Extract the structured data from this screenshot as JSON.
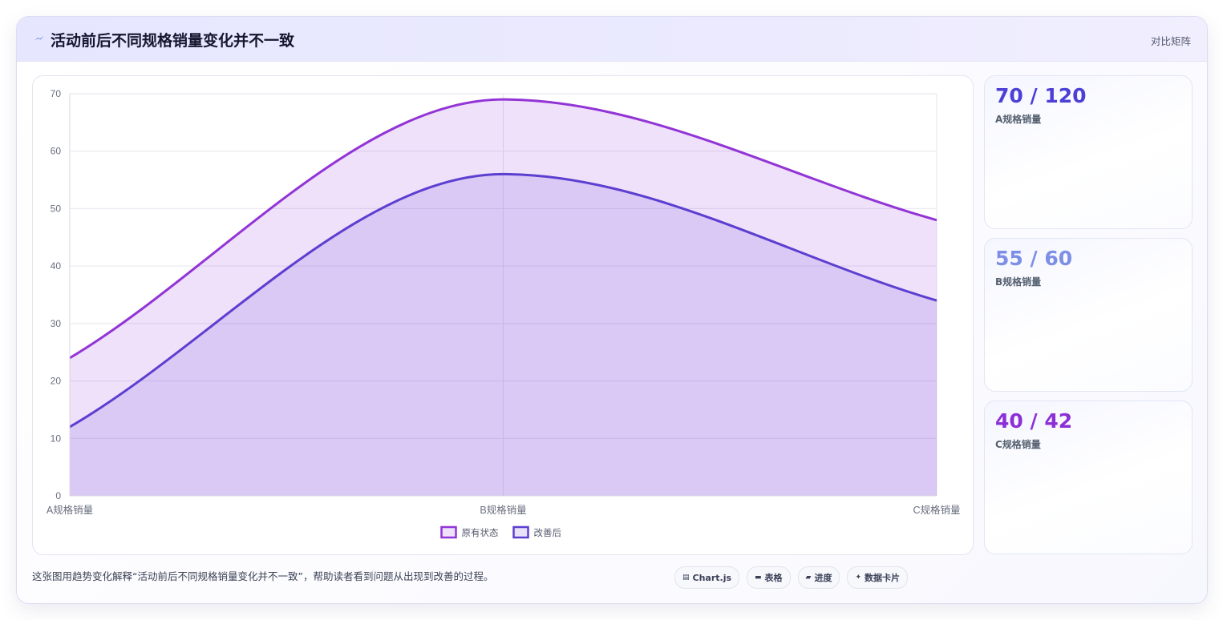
{
  "header": {
    "title": "活动前后不同规格销量变化并不一致",
    "icon": "lightning-icon",
    "tag": "对比矩阵"
  },
  "chart_data": {
    "type": "area",
    "categories": [
      "A规格销量",
      "B规格销量",
      "C规格销量"
    ],
    "series": [
      {
        "name": "原有状态",
        "values": [
          24,
          69,
          48
        ],
        "color": "#9234d6",
        "fill": "rgba(146, 52, 214, 0.15)"
      },
      {
        "name": "改善后",
        "values": [
          12,
          56,
          34
        ],
        "color": "#5b3fd0",
        "fill": "rgba(120, 90, 230, 0.18)"
      }
    ],
    "ylim": [
      0,
      70
    ],
    "yticks": [
      0,
      10,
      20,
      30,
      40,
      50,
      60,
      70
    ],
    "grid": true,
    "smooth": true,
    "legend_position": "bottom"
  },
  "kpis": [
    {
      "value": "70 / 120",
      "label": "A规格销量",
      "color": "#4b3fd8"
    },
    {
      "value": "55 / 60",
      "label": "B规格销量",
      "color": "#7d8ee6"
    },
    {
      "value": "40 / 42",
      "label": "C规格销量",
      "color": "#8c2fd6"
    }
  ],
  "footer": {
    "description": "这张图用趋势变化解释“活动前后不同规格销量变化并不一致”，帮助读者看到问题从出现到改善的过程。",
    "pills": [
      {
        "icon": "chart-icon",
        "glyph": "▤",
        "label": "Chart.js"
      },
      {
        "icon": "table-icon",
        "glyph": "▬",
        "label": "表格"
      },
      {
        "icon": "progress-icon",
        "glyph": "▰",
        "label": "进度"
      },
      {
        "icon": "sparkle-icon",
        "glyph": "✦",
        "label": "数据卡片"
      }
    ]
  }
}
